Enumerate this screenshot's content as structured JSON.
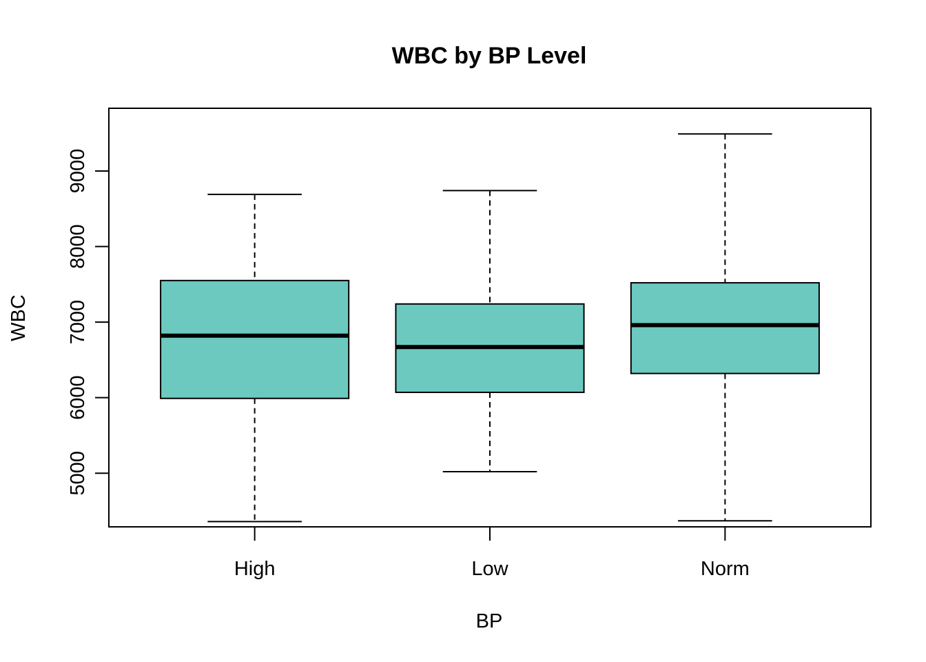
{
  "chart_data": {
    "type": "boxplot",
    "title": "WBC by BP Level",
    "xlabel": "BP",
    "ylabel": "WBC",
    "categories": [
      "High",
      "Low",
      "Norm"
    ],
    "boxes": [
      {
        "category": "High",
        "whisker_low": 4360,
        "q1": 5990,
        "median": 6820,
        "q3": 7550,
        "whisker_high": 8690
      },
      {
        "category": "Low",
        "whisker_low": 5020,
        "q1": 6070,
        "median": 6670,
        "q3": 7240,
        "whisker_high": 8740
      },
      {
        "category": "Norm",
        "whisker_low": 4370,
        "q1": 6320,
        "median": 6960,
        "q3": 7520,
        "whisker_high": 9490
      }
    ],
    "yticks": [
      5000,
      6000,
      7000,
      8000,
      9000
    ],
    "ylim": [
      4290,
      9830
    ],
    "box_color": "#6cc9c0",
    "grid": false
  }
}
